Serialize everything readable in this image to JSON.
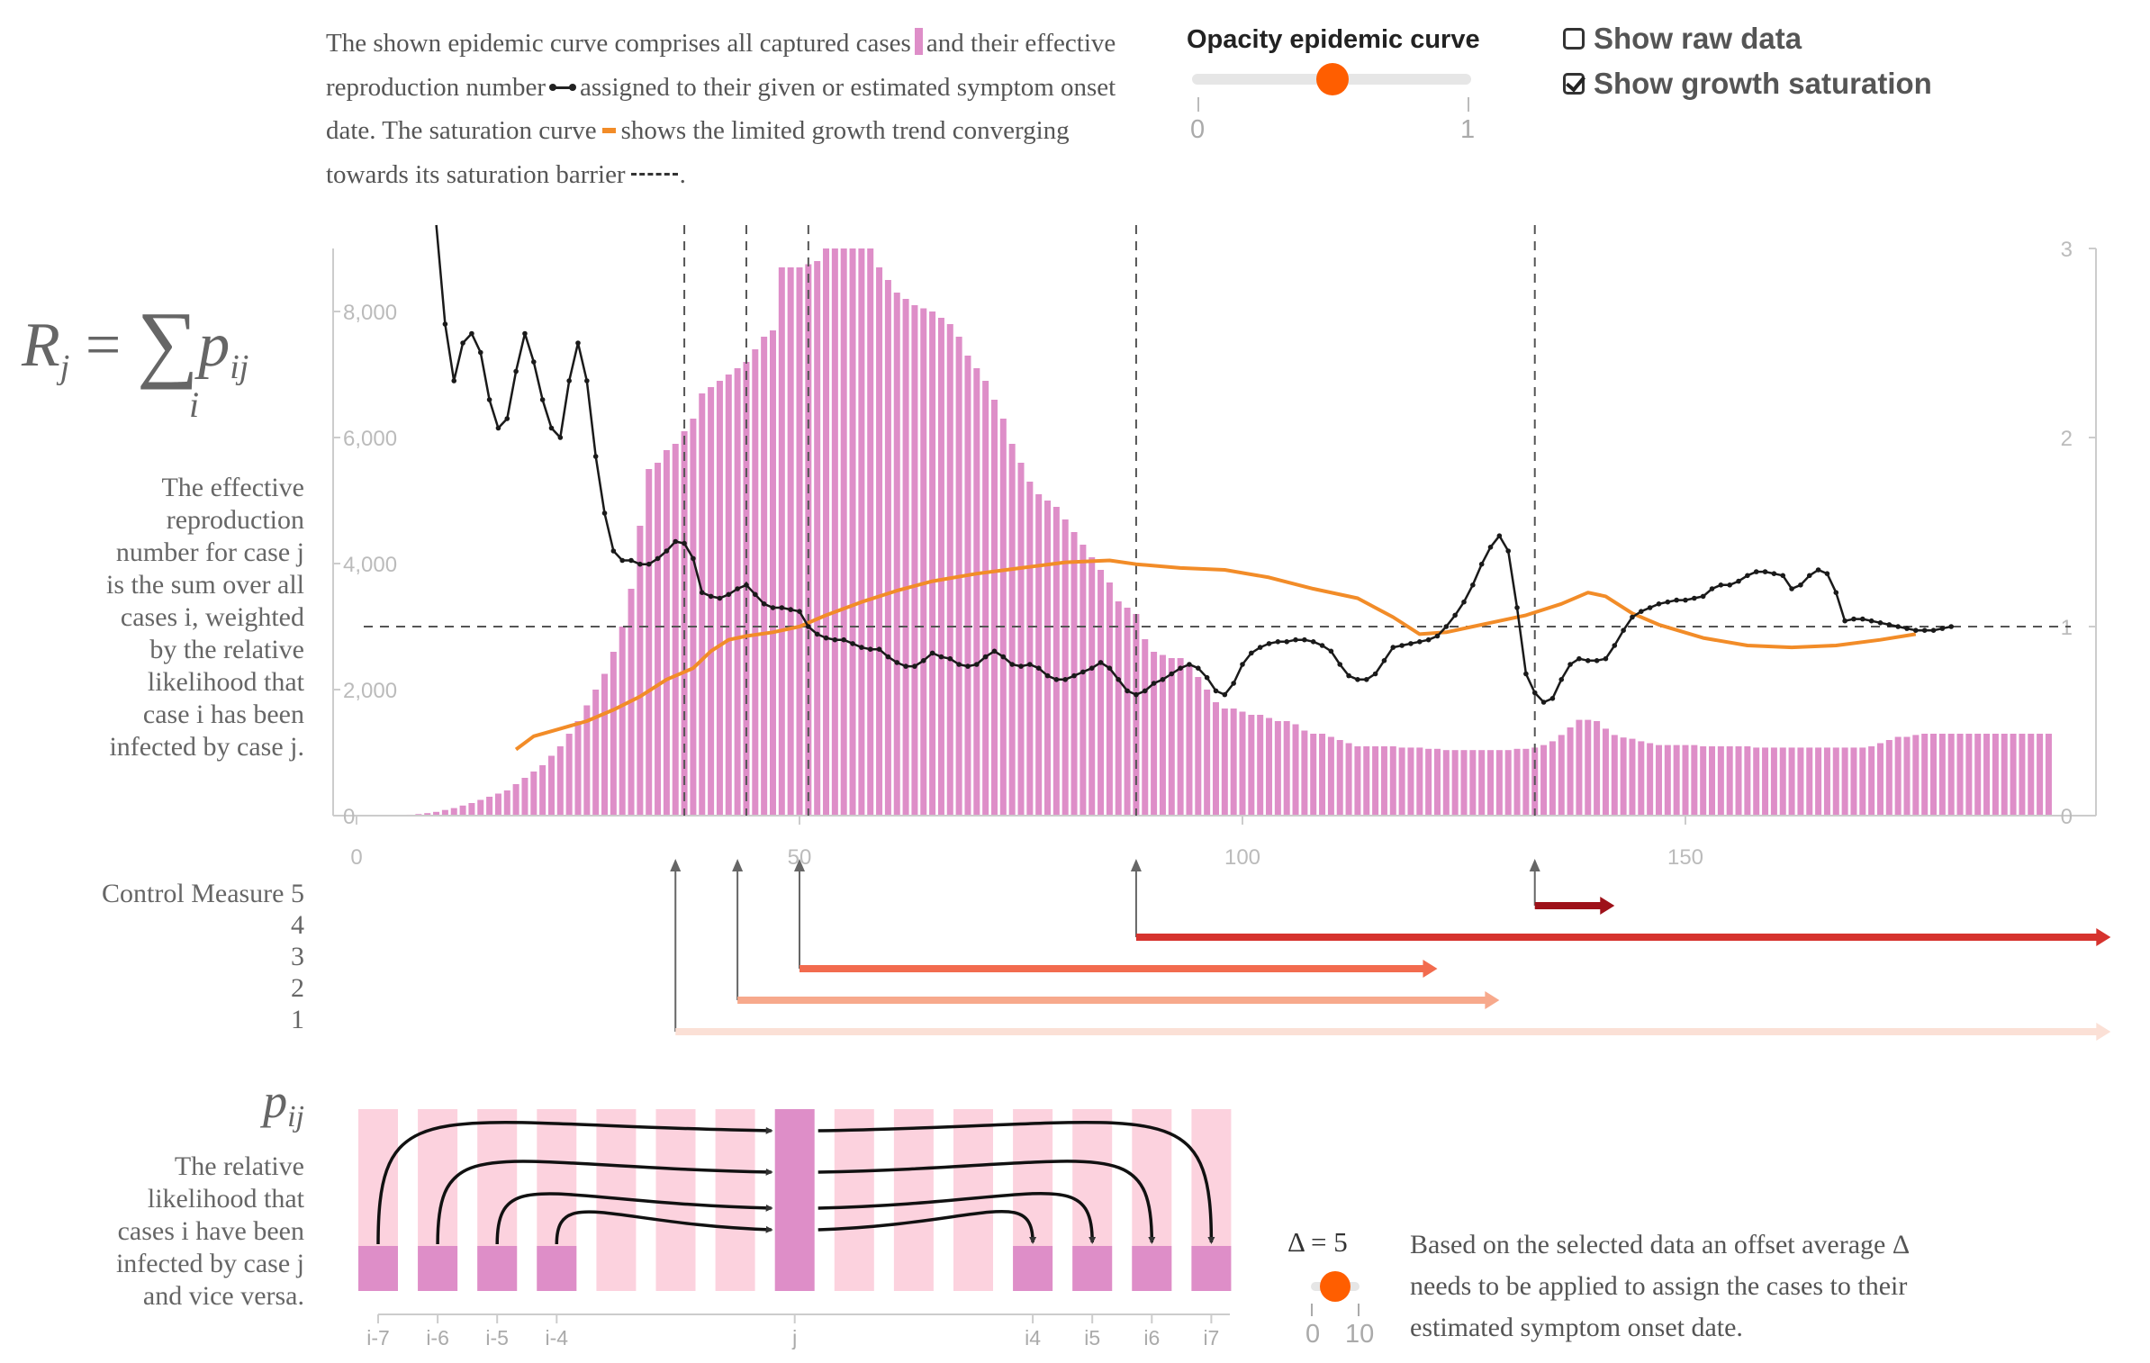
{
  "intro": {
    "part1": "The shown epidemic curve comprises all captured cases",
    "part2": "and their effective reproduction number",
    "part3": "assigned to their given or estimated symptom onset date. The saturation curve",
    "part4": "shows the limited growth trend converging towards its saturation barrier",
    "part5": "."
  },
  "opacity_slider": {
    "title": "Opacity epidemic curve",
    "min_label": "0",
    "max_label": "1",
    "value": 0.5
  },
  "toggles": [
    {
      "label": "Show raw data",
      "checked": false
    },
    {
      "label": "Show growth saturation",
      "checked": true
    }
  ],
  "formula": {
    "lhs": "R",
    "lhs_sub": "j",
    "equals": "=",
    "sum": "∑",
    "sum_index": "i",
    "rhs": "p",
    "rhs_sub": "ij"
  },
  "r_description": [
    "The effective",
    "reproduction",
    "number for case j",
    "is the sum over all",
    "cases i, weighted",
    "by the relative",
    "likelihood that",
    "case i has been",
    "infected by case j."
  ],
  "control_measures": {
    "title": "Control Measure",
    "labels": [
      "5",
      "4",
      "3",
      "2",
      "1"
    ],
    "measures": [
      {
        "level": 5,
        "start": 133,
        "end": 142,
        "color": "#9e1119"
      },
      {
        "level": 4,
        "start": 88,
        "end": 198,
        "color": "#d6332e"
      },
      {
        "level": 3,
        "start": 50,
        "end": 122,
        "color": "#f26b4e"
      },
      {
        "level": 2,
        "start": 43,
        "end": 129,
        "color": "#f7a98c"
      },
      {
        "level": 1,
        "start": 36,
        "end": 198,
        "color": "#fbe0d6"
      }
    ]
  },
  "pij": {
    "title": "pij",
    "description": [
      "The relative",
      "likelihood that",
      "cases i have been",
      "infected by case j",
      "and vice versa."
    ],
    "tick_labels": [
      "i-7",
      "i-6",
      "i-5",
      "i-4",
      "j",
      "i4",
      "i5",
      "i6",
      "i7"
    ]
  },
  "delta": {
    "label": "Δ = 5",
    "value": 5,
    "min_label": "0",
    "max_label": "10"
  },
  "note": "Based on the selected data an offset average Δ needs to be applied to assign the cases to their estimated symptom onset date.",
  "colors": {
    "bars": "#de8ec8",
    "r_line": "#1a1a1a",
    "saturation": "#f28c28",
    "accent": "#ff5e00"
  },
  "chart_data": {
    "type": "bar",
    "x_ticks": [
      "0",
      "50",
      "100",
      "150"
    ],
    "y_left_ticks": [
      "0",
      "2,000",
      "4,000",
      "6,000",
      "8,000"
    ],
    "y_right_ticks": [
      "0",
      "1",
      "2",
      "3"
    ],
    "xlim": [
      0,
      197
    ],
    "ylim_left": [
      0,
      9000
    ],
    "ylim_right": [
      0,
      3
    ],
    "markers_x": [
      37,
      44,
      51,
      88,
      133
    ],
    "r_threshold": 1,
    "cases_x_start": 5,
    "cases": [
      10,
      15,
      25,
      40,
      60,
      90,
      120,
      160,
      200,
      250,
      300,
      350,
      400,
      500,
      600,
      700,
      800,
      950,
      1100,
      1300,
      1500,
      1750,
      2000,
      2250,
      2600,
      3000,
      3600,
      4600,
      5500,
      5600,
      5800,
      5900,
      6100,
      6300,
      6700,
      6800,
      6900,
      7000,
      7100,
      7200,
      7400,
      7600,
      7700,
      8700,
      8700,
      8700,
      8750,
      8800,
      9000,
      9000,
      9000,
      9000,
      9000,
      9000,
      8700,
      8500,
      8300,
      8200,
      8100,
      8050,
      8000,
      7900,
      7800,
      7600,
      7300,
      7100,
      6900,
      6600,
      6300,
      5900,
      5600,
      5300,
      5100,
      5000,
      4900,
      4700,
      4500,
      4300,
      4100,
      3900,
      3700,
      3400,
      3300,
      3200,
      2800,
      2600,
      2550,
      2500,
      2500,
      2400,
      2200,
      2000,
      1800,
      1700,
      1700,
      1650,
      1600,
      1600,
      1550,
      1500,
      1500,
      1450,
      1350,
      1300,
      1300,
      1250,
      1200,
      1150,
      1100,
      1100,
      1100,
      1100,
      1100,
      1080,
      1080,
      1080,
      1060,
      1060,
      1040,
      1040,
      1040,
      1040,
      1040,
      1040,
      1040,
      1040,
      1060,
      1060,
      1080,
      1120,
      1180,
      1280,
      1400,
      1520,
      1520,
      1500,
      1380,
      1280,
      1240,
      1220,
      1180,
      1150,
      1120,
      1120,
      1120,
      1120,
      1120,
      1100,
      1100,
      1100,
      1100,
      1100,
      1100,
      1080,
      1080,
      1080,
      1080,
      1080,
      1080,
      1080,
      1080,
      1080,
      1080,
      1080,
      1080,
      1080,
      1100,
      1150,
      1200,
      1250,
      1250,
      1280,
      1300,
      1300,
      1300,
      1300,
      1300,
      1300,
      1300,
      1300,
      1300,
      1300,
      1300,
      1300,
      1300,
      1300,
      1300
    ],
    "r_values": [
      [
        9,
        3.5
      ],
      [
        10,
        2.6
      ],
      [
        11,
        2.3
      ],
      [
        12,
        2.5
      ],
      [
        13,
        2.55
      ],
      [
        14,
        2.45
      ],
      [
        15,
        2.2
      ],
      [
        16,
        2.05
      ],
      [
        17,
        2.1
      ],
      [
        18,
        2.35
      ],
      [
        19,
        2.55
      ],
      [
        20,
        2.4
      ],
      [
        21,
        2.2
      ],
      [
        22,
        2.05
      ],
      [
        23,
        2.0
      ],
      [
        24,
        2.3
      ],
      [
        25,
        2.5
      ],
      [
        26,
        2.3
      ],
      [
        27,
        1.9
      ],
      [
        28,
        1.6
      ],
      [
        29,
        1.4
      ],
      [
        30,
        1.35
      ],
      [
        31,
        1.35
      ],
      [
        32,
        1.33
      ],
      [
        33,
        1.33
      ],
      [
        34,
        1.36
      ],
      [
        35,
        1.4
      ],
      [
        36,
        1.45
      ],
      [
        37,
        1.44
      ],
      [
        38,
        1.36
      ],
      [
        39,
        1.18
      ],
      [
        40,
        1.16
      ],
      [
        41,
        1.15
      ],
      [
        42,
        1.17
      ],
      [
        43,
        1.2
      ],
      [
        44,
        1.22
      ],
      [
        45,
        1.17
      ],
      [
        46,
        1.12
      ],
      [
        47,
        1.1
      ],
      [
        48,
        1.1
      ],
      [
        49,
        1.09
      ],
      [
        50,
        1.08
      ],
      [
        51,
        1.0
      ],
      [
        52,
        0.96
      ],
      [
        53,
        0.94
      ],
      [
        54,
        0.93
      ],
      [
        55,
        0.93
      ],
      [
        56,
        0.91
      ],
      [
        57,
        0.89
      ],
      [
        58,
        0.88
      ],
      [
        59,
        0.88
      ],
      [
        60,
        0.84
      ],
      [
        61,
        0.81
      ],
      [
        62,
        0.79
      ],
      [
        63,
        0.79
      ],
      [
        64,
        0.82
      ],
      [
        65,
        0.86
      ],
      [
        66,
        0.84
      ],
      [
        67,
        0.83
      ],
      [
        68,
        0.8
      ],
      [
        69,
        0.79
      ],
      [
        70,
        0.8
      ],
      [
        71,
        0.84
      ],
      [
        72,
        0.87
      ],
      [
        73,
        0.84
      ],
      [
        74,
        0.8
      ],
      [
        75,
        0.79
      ],
      [
        76,
        0.8
      ],
      [
        77,
        0.78
      ],
      [
        78,
        0.74
      ],
      [
        79,
        0.72
      ],
      [
        80,
        0.72
      ],
      [
        81,
        0.74
      ],
      [
        82,
        0.76
      ],
      [
        83,
        0.78
      ],
      [
        84,
        0.81
      ],
      [
        85,
        0.78
      ],
      [
        86,
        0.72
      ],
      [
        87,
        0.66
      ],
      [
        88,
        0.64
      ],
      [
        89,
        0.66
      ],
      [
        90,
        0.7
      ],
      [
        91,
        0.72
      ],
      [
        92,
        0.75
      ],
      [
        93,
        0.78
      ],
      [
        94,
        0.8
      ],
      [
        95,
        0.78
      ],
      [
        96,
        0.73
      ],
      [
        97,
        0.66
      ],
      [
        98,
        0.64
      ],
      [
        99,
        0.7
      ],
      [
        100,
        0.8
      ],
      [
        101,
        0.86
      ],
      [
        102,
        0.89
      ],
      [
        103,
        0.91
      ],
      [
        104,
        0.92
      ],
      [
        105,
        0.92
      ],
      [
        106,
        0.93
      ],
      [
        107,
        0.93
      ],
      [
        108,
        0.92
      ],
      [
        109,
        0.9
      ],
      [
        110,
        0.87
      ],
      [
        111,
        0.8
      ],
      [
        112,
        0.74
      ],
      [
        113,
        0.72
      ],
      [
        114,
        0.72
      ],
      [
        115,
        0.75
      ],
      [
        116,
        0.82
      ],
      [
        117,
        0.89
      ],
      [
        118,
        0.9
      ],
      [
        119,
        0.91
      ],
      [
        120,
        0.92
      ],
      [
        121,
        0.93
      ],
      [
        122,
        0.95
      ],
      [
        123,
        1.0
      ],
      [
        124,
        1.06
      ],
      [
        125,
        1.13
      ],
      [
        126,
        1.22
      ],
      [
        127,
        1.33
      ],
      [
        128,
        1.42
      ],
      [
        129,
        1.48
      ],
      [
        130,
        1.4
      ],
      [
        131,
        1.1
      ],
      [
        132,
        0.75
      ],
      [
        133,
        0.65
      ],
      [
        134,
        0.6
      ],
      [
        135,
        0.62
      ],
      [
        136,
        0.72
      ],
      [
        137,
        0.8
      ],
      [
        138,
        0.83
      ],
      [
        139,
        0.82
      ],
      [
        140,
        0.82
      ],
      [
        141,
        0.83
      ],
      [
        142,
        0.9
      ],
      [
        143,
        0.98
      ],
      [
        144,
        1.05
      ],
      [
        145,
        1.08
      ],
      [
        146,
        1.1
      ],
      [
        147,
        1.12
      ],
      [
        148,
        1.13
      ],
      [
        149,
        1.14
      ],
      [
        150,
        1.14
      ],
      [
        151,
        1.15
      ],
      [
        152,
        1.16
      ],
      [
        153,
        1.2
      ],
      [
        154,
        1.22
      ],
      [
        155,
        1.22
      ],
      [
        156,
        1.24
      ],
      [
        157,
        1.27
      ],
      [
        158,
        1.29
      ],
      [
        159,
        1.29
      ],
      [
        160,
        1.28
      ],
      [
        161,
        1.27
      ],
      [
        162,
        1.2
      ],
      [
        163,
        1.22
      ],
      [
        164,
        1.27
      ],
      [
        165,
        1.3
      ],
      [
        166,
        1.28
      ],
      [
        167,
        1.18
      ],
      [
        168,
        1.03
      ],
      [
        169,
        1.04
      ],
      [
        170,
        1.04
      ],
      [
        171,
        1.03
      ],
      [
        172,
        1.02
      ],
      [
        173,
        1.01
      ],
      [
        174,
        1.0
      ],
      [
        175,
        0.99
      ],
      [
        176,
        0.98
      ],
      [
        177,
        0.98
      ],
      [
        178,
        0.98
      ],
      [
        179,
        0.99
      ],
      [
        180,
        1.0
      ]
    ],
    "saturation": [
      [
        18,
        0.35
      ],
      [
        20,
        0.42
      ],
      [
        23,
        0.46
      ],
      [
        26,
        0.5
      ],
      [
        29,
        0.56
      ],
      [
        32,
        0.63
      ],
      [
        35,
        0.72
      ],
      [
        38,
        0.78
      ],
      [
        40,
        0.87
      ],
      [
        42,
        0.93
      ],
      [
        44,
        0.95
      ],
      [
        47,
        0.97
      ],
      [
        50,
        1.0
      ],
      [
        53,
        1.06
      ],
      [
        57,
        1.13
      ],
      [
        61,
        1.19
      ],
      [
        65,
        1.24
      ],
      [
        70,
        1.28
      ],
      [
        75,
        1.31
      ],
      [
        80,
        1.34
      ],
      [
        85,
        1.35
      ],
      [
        88,
        1.33
      ],
      [
        93,
        1.31
      ],
      [
        98,
        1.3
      ],
      [
        103,
        1.26
      ],
      [
        108,
        1.2
      ],
      [
        113,
        1.15
      ],
      [
        117,
        1.05
      ],
      [
        120,
        0.96
      ],
      [
        123,
        0.97
      ],
      [
        126,
        1.0
      ],
      [
        129,
        1.03
      ],
      [
        132,
        1.06
      ],
      [
        136,
        1.12
      ],
      [
        139,
        1.18
      ],
      [
        141,
        1.16
      ],
      [
        144,
        1.07
      ],
      [
        147,
        1.01
      ],
      [
        152,
        0.94
      ],
      [
        157,
        0.9
      ],
      [
        162,
        0.89
      ],
      [
        167,
        0.9
      ],
      [
        172,
        0.93
      ],
      [
        176,
        0.96
      ]
    ]
  }
}
